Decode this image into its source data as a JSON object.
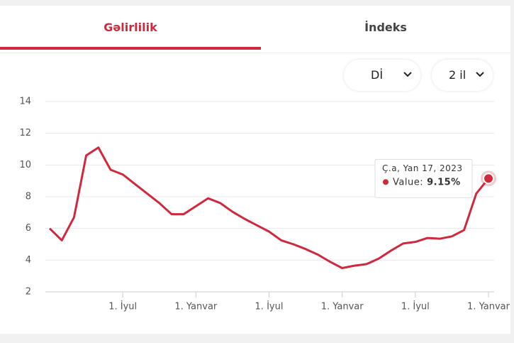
{
  "tabs": [
    "Gəlirlilik",
    "İndeks"
  ],
  "dropdowns": [
    "Dİ",
    "2 il"
  ],
  "chart_data": {
    "type": "line",
    "categories": [
      null,
      null,
      null,
      null,
      null,
      null,
      "1. İyul",
      null,
      null,
      null,
      null,
      null,
      "1. Yanvar",
      null,
      null,
      null,
      null,
      null,
      "1. İyul",
      null,
      null,
      null,
      null,
      null,
      "1. Yanvar",
      null,
      null,
      null,
      null,
      null,
      "1. İyul",
      null,
      null,
      null,
      null,
      null,
      "1. Yanvar"
    ],
    "series": [
      {
        "name": "Value",
        "color": "#d0283d",
        "values": [
          6.0,
          5.25,
          6.7,
          10.6,
          11.1,
          9.7,
          9.4,
          8.8,
          8.2,
          7.6,
          6.9,
          6.9,
          7.4,
          7.9,
          7.6,
          7.05,
          6.6,
          6.2,
          5.8,
          5.25,
          5.0,
          4.7,
          4.35,
          3.9,
          3.5,
          3.65,
          3.75,
          4.1,
          4.6,
          5.05,
          5.15,
          5.4,
          5.35,
          5.5,
          5.9,
          8.2,
          9.15
        ],
        "value_labels": [
          null,
          null,
          null,
          null,
          null,
          null,
          null,
          null,
          null,
          null,
          null,
          null,
          null,
          null,
          null,
          null,
          null,
          null,
          null,
          null,
          null,
          null,
          null,
          null,
          null,
          null,
          null,
          null,
          null,
          null,
          null,
          null,
          null,
          null,
          null,
          null,
          "9.15%"
        ]
      }
    ],
    "tooltip": {
      "title": "Ç.a, Yan 17, 2023",
      "label": "Value:"
    },
    "ylim": [
      2,
      14
    ],
    "yticks": [
      2,
      4,
      6,
      8,
      10,
      12,
      14
    ],
    "grid": true
  }
}
